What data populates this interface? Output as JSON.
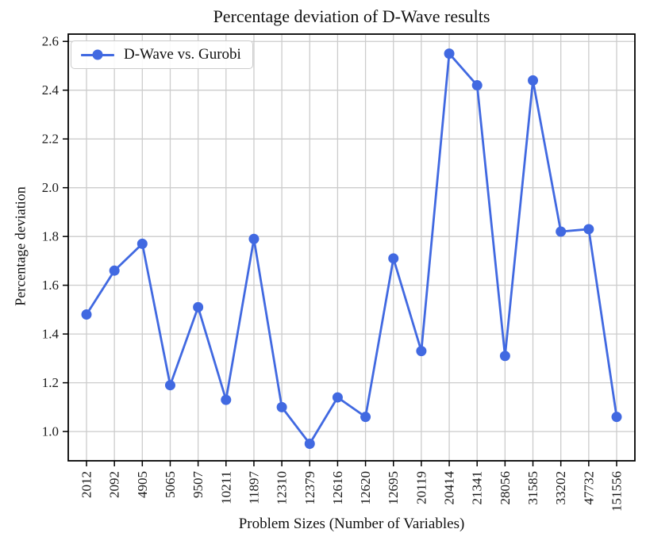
{
  "chart_data": {
    "type": "line",
    "title": "Percentage deviation of D-Wave results",
    "xlabel": "Problem Sizes (Number of Variables)",
    "ylabel": "Percentage deviation",
    "categories": [
      "2012",
      "2092",
      "4905",
      "5065",
      "9507",
      "10211",
      "11897",
      "12310",
      "12379",
      "12616",
      "12620",
      "12695",
      "20119",
      "20414",
      "21341",
      "28056",
      "31585",
      "33202",
      "47732",
      "151556"
    ],
    "series": [
      {
        "name": "D-Wave vs. Gurobi",
        "color": "#4169E1",
        "marker": "circle",
        "values": [
          1.48,
          1.66,
          1.77,
          1.19,
          1.51,
          1.13,
          1.79,
          1.1,
          0.95,
          1.14,
          1.06,
          1.71,
          1.33,
          2.55,
          2.42,
          1.31,
          2.44,
          1.82,
          1.83,
          1.06
        ]
      }
    ],
    "yticks": [
      1.0,
      1.2,
      1.4,
      1.6,
      1.8,
      2.0,
      2.2,
      2.4,
      2.6
    ],
    "ytick_labels": [
      "1.0",
      "1.2",
      "1.4",
      "1.6",
      "1.8",
      "2.0",
      "2.2",
      "2.4",
      "2.6"
    ],
    "ylim": [
      0.88,
      2.63
    ],
    "grid": true,
    "grid_color": "#cccccc",
    "axis_color": "#000000",
    "legend": {
      "position": "upper left",
      "label": "D-Wave vs. Gurobi"
    }
  }
}
